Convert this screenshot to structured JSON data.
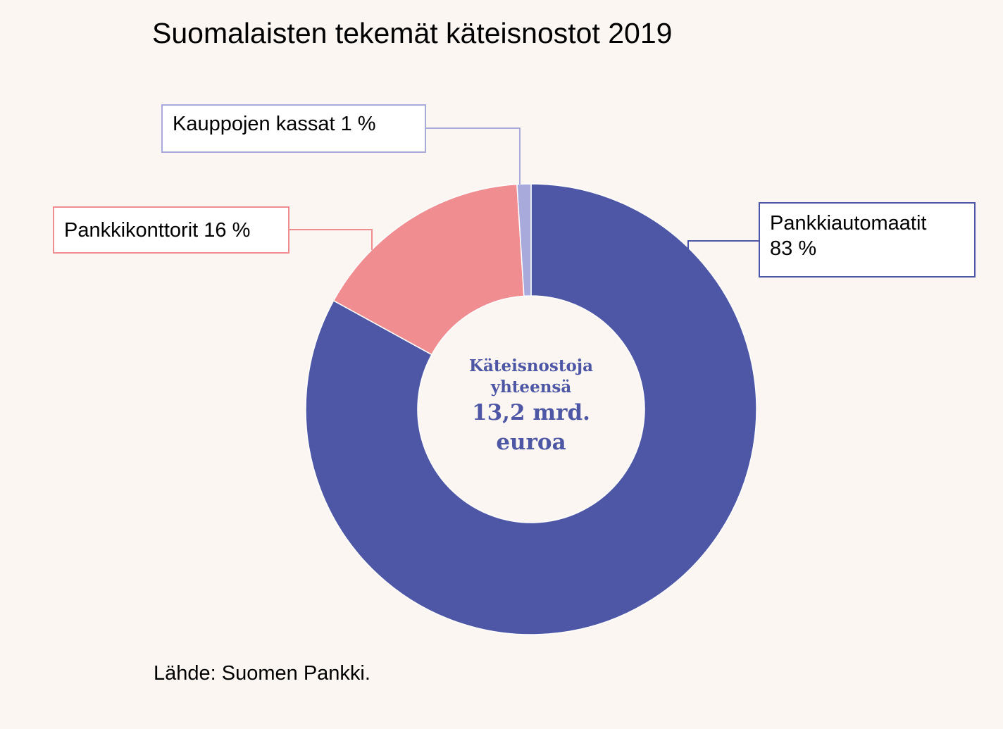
{
  "chart_data": {
    "type": "pie",
    "donut": true,
    "title": "Suomalaisten tekemät käteisnostot 2019",
    "slices": [
      {
        "name": "Pankkiautomaatit",
        "value": 83,
        "label_lines": [
          "Pankkiautomaatit",
          "83 %"
        ],
        "color": "#4e57a5"
      },
      {
        "name": "Pankkikonttorit",
        "value": 16,
        "label_lines": [
          "Pankkikonttorit  16 %"
        ],
        "color": "#f08d91"
      },
      {
        "name": "Kauppojen kassat",
        "value": 1,
        "label_lines": [
          "Kauppojen  kassat  1 %"
        ],
        "color": "#a8aadc"
      }
    ],
    "center_text": [
      "Käteisnostoja",
      "yhteensä",
      "13,2 mrd.",
      "euroa"
    ],
    "center_text_color": "#4e57a5",
    "source": "Lähde:  Suomen  Pankki."
  }
}
